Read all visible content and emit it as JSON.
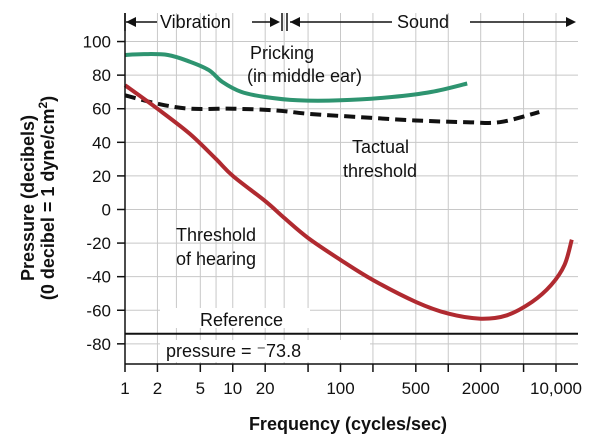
{
  "chart_data": {
    "type": "line",
    "xscale": "log",
    "xlim": [
      1,
      16000
    ],
    "ylim": [
      -92,
      117
    ],
    "grid": true,
    "xlabel": "Frequency (cycles/sec)",
    "ylabel": [
      "Pressure (decibels)",
      "(0 decibel = 1 dyne/cm",
      "2",
      ")"
    ],
    "x_tick_labels": [
      {
        "value": 1,
        "label": "1"
      },
      {
        "value": 2,
        "label": "2"
      },
      {
        "value": 5,
        "label": "5"
      },
      {
        "value": 10,
        "label": "10"
      },
      {
        "value": 20,
        "label": "20"
      },
      {
        "value": 100,
        "label": "100"
      },
      {
        "value": 500,
        "label": "500"
      },
      {
        "value": 2000,
        "label": "2000"
      },
      {
        "value": 10000,
        "label": "10,000"
      }
    ],
    "x_minor_ticks": [
      50,
      200,
      1000,
      5000
    ],
    "x_gridlines": [
      1,
      2,
      3,
      5,
      7,
      10,
      20,
      30,
      50,
      100,
      200,
      500,
      1000,
      2000,
      5000,
      10000
    ],
    "y_ticks": [
      100,
      80,
      60,
      40,
      20,
      0,
      -20,
      -40,
      -60,
      -80
    ],
    "series": [
      {
        "key": "pricking",
        "color": "#2e9470",
        "style": "solid",
        "points": [
          [
            1,
            92
          ],
          [
            1.5,
            92.5
          ],
          [
            2.5,
            92
          ],
          [
            4,
            88
          ],
          [
            6,
            83
          ],
          [
            8,
            76
          ],
          [
            12,
            70
          ],
          [
            20,
            67
          ],
          [
            40,
            65
          ],
          [
            100,
            65
          ],
          [
            300,
            67
          ],
          [
            700,
            70
          ],
          [
            1500,
            75
          ]
        ]
      },
      {
        "key": "tactual",
        "color": "#111111",
        "style": "dashed",
        "points": [
          [
            1,
            68
          ],
          [
            2,
            63
          ],
          [
            4,
            60
          ],
          [
            10,
            60
          ],
          [
            25,
            59
          ],
          [
            50,
            57
          ],
          [
            150,
            55
          ],
          [
            500,
            53
          ],
          [
            1500,
            52
          ],
          [
            3000,
            52
          ],
          [
            7000,
            58
          ]
        ]
      },
      {
        "key": "hearing",
        "color": "#b02a30",
        "style": "solid",
        "points": [
          [
            1,
            74
          ],
          [
            2,
            60
          ],
          [
            4,
            45
          ],
          [
            7,
            30
          ],
          [
            10,
            20
          ],
          [
            20,
            5
          ],
          [
            30,
            -5
          ],
          [
            50,
            -17
          ],
          [
            100,
            -30
          ],
          [
            200,
            -42
          ],
          [
            500,
            -55
          ],
          [
            1000,
            -62
          ],
          [
            2000,
            -65
          ],
          [
            3500,
            -63
          ],
          [
            6000,
            -55
          ],
          [
            9000,
            -45
          ],
          [
            12000,
            -33
          ],
          [
            14000,
            -18
          ]
        ]
      }
    ],
    "reference_line": {
      "y": -74,
      "color": "#111111"
    },
    "annotations": {
      "vibration": "Vibration",
      "sound": "Sound",
      "pricking_line1": "Pricking",
      "pricking_line2": "(in middle ear)",
      "tactual_line1": "Tactual",
      "tactual_line2": "threshold",
      "hearing_line1": "Threshold",
      "hearing_line2": "of hearing",
      "reference_line1": "Reference",
      "reference_line2": "pressure = ⁻73.8"
    }
  }
}
